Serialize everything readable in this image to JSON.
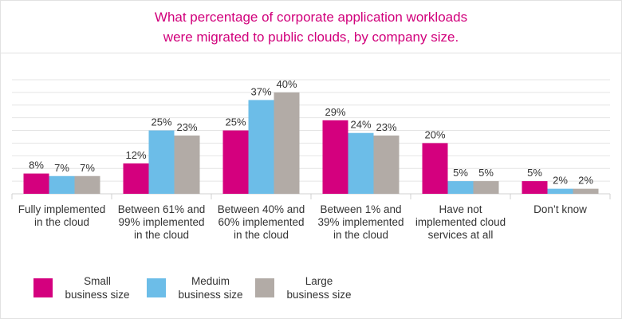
{
  "chart_data": {
    "type": "bar",
    "title_line1": "What percentage of corporate application workloads",
    "title_line2": "were migrated to public clouds, by company size.",
    "categories": [
      "Fully implemented\nin the cloud",
      "Between 61% and\n99% implemented\nin the cloud",
      "Between 40% and\n60% implemented\nin the cloud",
      "Between 1% and\n39% implemented\nin the cloud",
      "Have not\nimplemented cloud\nservices at all",
      "Don’t know"
    ],
    "series": [
      {
        "name": "Small\nbusiness size",
        "color": "#d4007e",
        "values": [
          8,
          12,
          25,
          29,
          20,
          5
        ]
      },
      {
        "name": "Meduim\nbusiness size",
        "color": "#6cbde8",
        "values": [
          7,
          25,
          37,
          24,
          5,
          2
        ]
      },
      {
        "name": "Large\nbusiness size",
        "color": "#b2aba6",
        "values": [
          7,
          23,
          40,
          23,
          5,
          2
        ]
      }
    ],
    "value_suffix": "%",
    "ylim": [
      0,
      45
    ],
    "grid": true,
    "legend_position": "bottom-left"
  }
}
